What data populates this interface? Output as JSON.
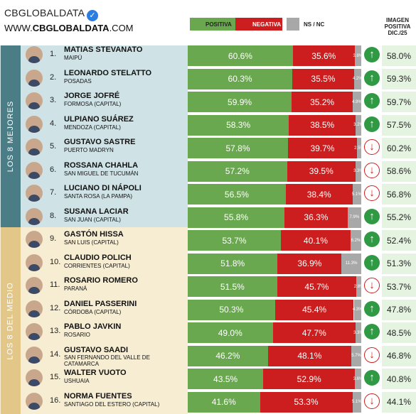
{
  "header": {
    "brand_name": "CBGLOBALDATA",
    "website_prefix": "WWW.",
    "website_bold": "CBGLOBALDATA",
    "website_suffix": ".COM"
  },
  "legend": {
    "positive": "POSITIVA",
    "negative": "NEGATIVA",
    "ns": "NS / NC"
  },
  "colors": {
    "positive": "#6aa84f",
    "negative": "#cc1e1e",
    "ns": "#a8a8a8",
    "trend_up": "#2f9a43",
    "section_top": "#4a7d86",
    "section_top_bg": "#cfe3e7",
    "section_mid": "#e3c789",
    "section_mid_bg": "#f6edd3"
  },
  "column_header": {
    "line1": "IMAGEN",
    "line2": "POSITIVA",
    "line3": "DIC./25"
  },
  "sections": [
    {
      "label": "LOS 8 MEJORES"
    },
    {
      "label": "LOS 8 DEL MEDIO"
    }
  ],
  "chart_data": {
    "type": "bar",
    "stacked": true,
    "orientation": "horizontal",
    "series": [
      {
        "name": "POSITIVA",
        "values": [
          60.6,
          60.3,
          59.9,
          58.3,
          57.8,
          57.2,
          56.5,
          55.8,
          53.7,
          51.8,
          51.5,
          50.3,
          49.0,
          46.2,
          43.5,
          41.6
        ]
      },
      {
        "name": "NEGATIVA",
        "values": [
          35.6,
          35.5,
          35.2,
          38.5,
          39.7,
          39.5,
          38.4,
          36.3,
          40.1,
          36.9,
          45.7,
          45.4,
          47.7,
          48.1,
          52.9,
          53.3
        ]
      },
      {
        "name": "NS / NC",
        "values": [
          3.8,
          4.2,
          4.9,
          3.2,
          2.5,
          3.3,
          5.1,
          7.9,
          6.2,
          11.3,
          2.8,
          4.3,
          3.3,
          5.7,
          3.6,
          5.1
        ]
      }
    ],
    "rows": [
      {
        "rank": "1.",
        "name": "MATIAS STEVANATO",
        "place": "MAIPÚ",
        "pos": "60.6%",
        "neg": "35.6%",
        "ns": "3.8%",
        "trend": "up",
        "prev": "58.0%"
      },
      {
        "rank": "2.",
        "name": "LEONARDO STELATTO",
        "place": "POSADAS",
        "pos": "60.3%",
        "neg": "35.5%",
        "ns": "4.2%",
        "trend": "up",
        "prev": "59.3%"
      },
      {
        "rank": "3.",
        "name": "JORGE JOFRÉ",
        "place": "FORMOSA (CAPITAL)",
        "pos": "59.9%",
        "neg": "35.2%",
        "ns": "4.9%",
        "trend": "up",
        "prev": "59.7%"
      },
      {
        "rank": "4.",
        "name": "ULPIANO SUÁREZ",
        "place": "MENDOZA (CAPITAL)",
        "pos": "58.3%",
        "neg": "38.5%",
        "ns": "3.2%",
        "trend": "up",
        "prev": "57.5%"
      },
      {
        "rank": "5.",
        "name": "GUSTAVO SASTRE",
        "place": "PUERTO MADRYN",
        "pos": "57.8%",
        "neg": "39.7%",
        "ns": "2.5%",
        "trend": "down",
        "prev": "60.2%"
      },
      {
        "rank": "6.",
        "name": "ROSSANA CHAHLA",
        "place": "SAN MIGUEL DE TUCUMÁN",
        "pos": "57.2%",
        "neg": "39.5%",
        "ns": "3.3%",
        "trend": "down",
        "prev": "58.6%"
      },
      {
        "rank": "7.",
        "name": "LUCIANO DI NÁPOLI",
        "place": "SANTA ROSA (LA PAMPA)",
        "pos": "56.5%",
        "neg": "38.4%",
        "ns": "5.1%",
        "trend": "down",
        "prev": "56.8%"
      },
      {
        "rank": "8.",
        "name": "SUSANA LACIAR",
        "place": "SAN JUAN (CAPITAL)",
        "pos": "55.8%",
        "neg": "36.3%",
        "ns": "7.9%",
        "trend": "up",
        "prev": "55.2%"
      },
      {
        "rank": "9.",
        "name": "GASTÓN HISSA",
        "place": "SAN LUIS (CAPITAL)",
        "pos": "53.7%",
        "neg": "40.1%",
        "ns": "6.2%",
        "trend": "up",
        "prev": "52.4%"
      },
      {
        "rank": "10.",
        "name": "CLAUDIO POLICH",
        "place": "CORRIENTES (CAPITAL)",
        "pos": "51.8%",
        "neg": "36.9%",
        "ns": "11.3%",
        "trend": "up",
        "prev": "51.3%"
      },
      {
        "rank": "11.",
        "name": "ROSARIO ROMERO",
        "place": "PARANÁ",
        "pos": "51.5%",
        "neg": "45.7%",
        "ns": "2.8%",
        "trend": "down",
        "prev": "53.7%"
      },
      {
        "rank": "12.",
        "name": "DANIEL PASSERINI",
        "place": "CÓRDOBA (CAPITAL)",
        "pos": "50.3%",
        "neg": "45.4%",
        "ns": "4.3%",
        "trend": "up",
        "prev": "47.8%"
      },
      {
        "rank": "13.",
        "name": "PABLO JAVKIN",
        "place": "ROSARIO",
        "pos": "49.0%",
        "neg": "47.7%",
        "ns": "3.3%",
        "trend": "up",
        "prev": "48.5%"
      },
      {
        "rank": "14.",
        "name": "GUSTAVO SAADI",
        "place": "SAN FERNANDO DEL VALLE DE CATAMARCA",
        "pos": "46.2%",
        "neg": "48.1%",
        "ns": "5.7%",
        "trend": "down",
        "prev": "46.8%"
      },
      {
        "rank": "15.",
        "name": "WALTER VUOTO",
        "place": "USHUAIA",
        "pos": "43.5%",
        "neg": "52.9%",
        "ns": "3.6%",
        "trend": "up",
        "prev": "40.8%"
      },
      {
        "rank": "16.",
        "name": "NORMA FUENTES",
        "place": "SANTIAGO DEL ESTERO (CAPITAL)",
        "pos": "41.6%",
        "neg": "53.3%",
        "ns": "5.1%",
        "trend": "down",
        "prev": "44.1%"
      }
    ]
  }
}
